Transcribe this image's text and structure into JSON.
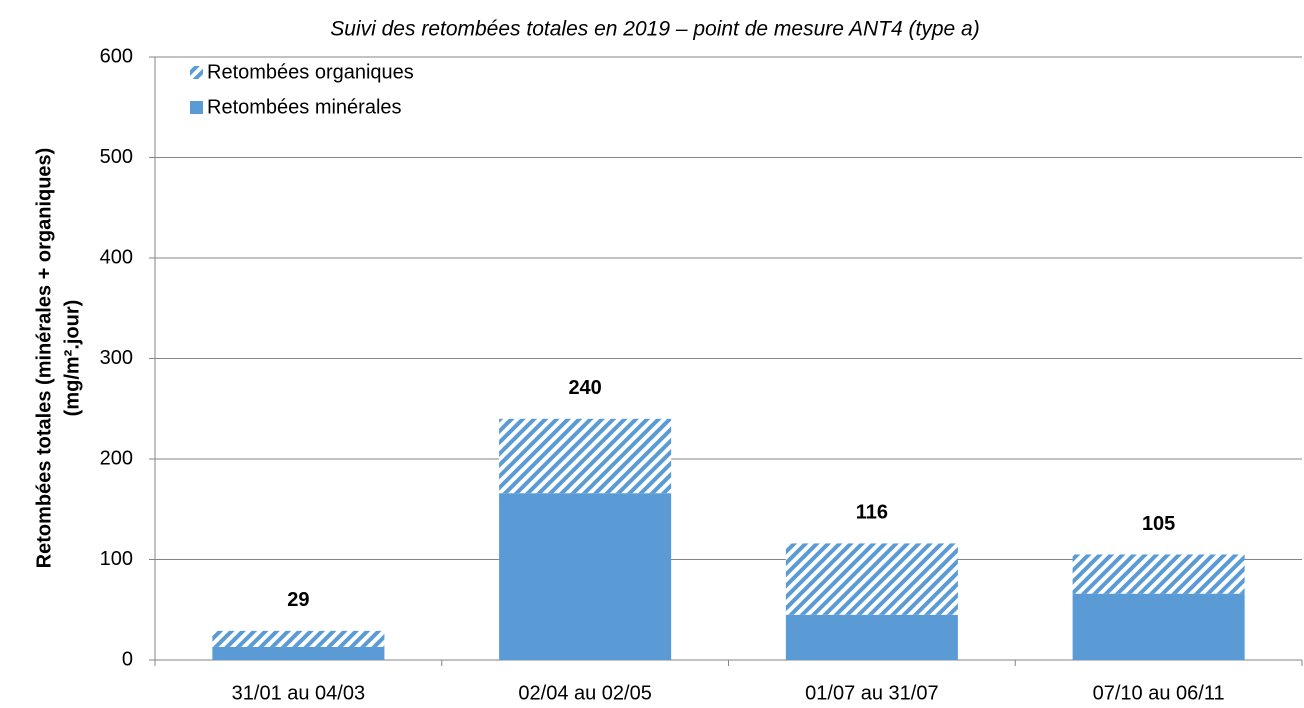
{
  "chart_data": {
    "type": "stacked_bar",
    "title": "Suivi des retombées totales en 2019 – point de mesure ANT4 (type a)",
    "ylabel": [
      "Retombées totales (minérales + organiques)",
      "(mg/m².jour)"
    ],
    "categories": [
      "31/01 au 04/03",
      "02/04 au 02/05",
      "01/07 au 31/07",
      "07/10 au 06/11"
    ],
    "series": [
      {
        "name": "Retombées organiques",
        "color": "#5b9bd5",
        "hatch": true,
        "values": [
          16,
          74,
          71,
          39
        ]
      },
      {
        "name": "Retombées minérales",
        "color": "#5b9bd5",
        "hatch": false,
        "values": [
          13,
          166,
          45,
          66
        ]
      }
    ],
    "totals": [
      29,
      240,
      116,
      105
    ],
    "ylim": [
      0,
      600
    ],
    "yticks": [
      0,
      100,
      200,
      300,
      400,
      500,
      600
    ],
    "grid": true,
    "legend": "top-left"
  }
}
